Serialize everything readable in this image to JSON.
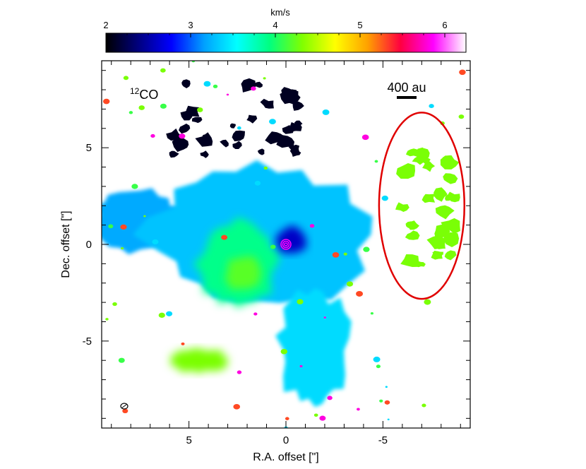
{
  "chart_data": {
    "type": "heatmap",
    "title": "",
    "xlabel": "R.A. offset [\"]",
    "ylabel": "Dec. offset [\"]",
    "xlim": [
      9.5,
      -9.5
    ],
    "ylim": [
      -9.5,
      9.5
    ],
    "x_ticks": [
      5,
      0,
      -5
    ],
    "x_tick_labels": [
      "5",
      "0",
      "-5"
    ],
    "y_ticks": [
      5,
      0,
      -5
    ],
    "y_tick_labels": [
      "5",
      "0",
      "-5"
    ],
    "colorbar": {
      "label": "km/s",
      "range": [
        2.0,
        6.25
      ],
      "ticks": [
        2,
        3,
        4,
        5,
        6
      ],
      "tick_labels": [
        "2",
        "3",
        "4",
        "5",
        "6"
      ],
      "colormap_stops": [
        "#000000",
        "#000080",
        "#0000ff",
        "#00a0ff",
        "#00ffff",
        "#00ff80",
        "#80ff00",
        "#ffff00",
        "#ffa000",
        "#ff0040",
        "#ff00ff",
        "#ffffff"
      ],
      "position": "top"
    },
    "molecule_label": "CO",
    "molecule_superscript": "12",
    "scale_bar": {
      "label": "400 au",
      "length_arcsec": 1.0
    },
    "ellipse": {
      "center": [
        -7.0,
        2.0
      ],
      "semi_axis_x": 2.2,
      "semi_axis_y": 4.8,
      "color": "#e00000"
    },
    "source": {
      "x": 0.0,
      "y": 0.0,
      "color": "#ff00ff"
    },
    "clumps": [
      {
        "name": "central-blue",
        "x": 1.5,
        "y": 0.5,
        "rx": 5.5,
        "ry": 3.8,
        "velocity": 3.3
      },
      {
        "name": "center-green",
        "x": 2.5,
        "y": -1.0,
        "rx": 2.0,
        "ry": 2.2,
        "velocity": 3.9
      },
      {
        "name": "center-yellow",
        "x": 2.2,
        "y": -1.5,
        "rx": 0.9,
        "ry": 0.9,
        "velocity": 4.2
      },
      {
        "name": "south-tail",
        "x": -1.5,
        "y": -5.5,
        "rx": 1.8,
        "ry": 3.0,
        "velocity": 3.4
      },
      {
        "name": "west-arm",
        "x": 7.5,
        "y": 1.2,
        "rx": 2.3,
        "ry": 1.5,
        "velocity": 3.2
      },
      {
        "name": "southwest-yellow",
        "x": 4.5,
        "y": -6.0,
        "rx": 1.5,
        "ry": 0.6,
        "velocity": 4.3
      },
      {
        "name": "core-dark",
        "x": -0.3,
        "y": 0.2,
        "rx": 0.8,
        "ry": 0.7,
        "velocity": 2.6
      },
      {
        "name": "ellipse-emission",
        "x": -7.3,
        "y": 1.5,
        "rx": 1.4,
        "ry": 3.3,
        "velocity": 4.3
      },
      {
        "name": "northern-shell",
        "x": 2.5,
        "y": 6.5,
        "rx": 3.5,
        "ry": 2.0,
        "velocity": 2.1
      }
    ]
  }
}
